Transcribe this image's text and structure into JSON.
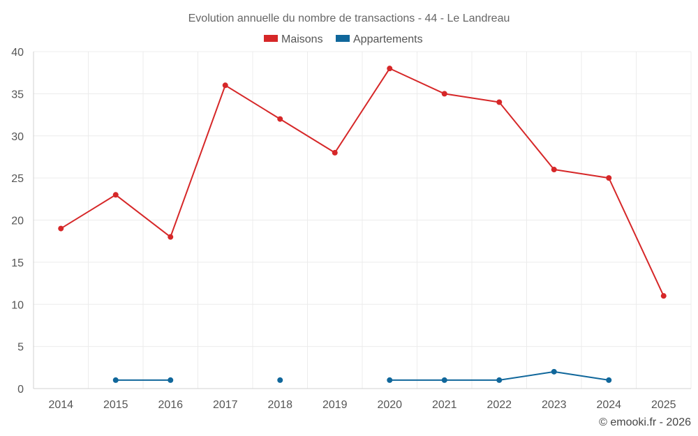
{
  "chart_data": {
    "type": "line",
    "title": "Evolution annuelle du nombre de transactions - 44 - Le Landreau",
    "categories": [
      "2014",
      "2015",
      "2016",
      "2017",
      "2018",
      "2019",
      "2020",
      "2021",
      "2022",
      "2023",
      "2024",
      "2025"
    ],
    "series": [
      {
        "name": "Maisons",
        "color": "#d62728",
        "values": [
          19,
          23,
          18,
          36,
          32,
          28,
          38,
          35,
          34,
          26,
          25,
          11
        ]
      },
      {
        "name": "Appartements",
        "color": "#10679b",
        "values": [
          null,
          1,
          1,
          null,
          1,
          null,
          1,
          1,
          1,
          2,
          1,
          null
        ]
      }
    ],
    "yticks": [
      0,
      5,
      10,
      15,
      20,
      25,
      30,
      35,
      40
    ],
    "ylim": [
      0,
      40
    ],
    "xlabel": "",
    "ylabel": "",
    "grid": true,
    "legend": "top-center",
    "footer": "© emooki.fr - 2026"
  }
}
